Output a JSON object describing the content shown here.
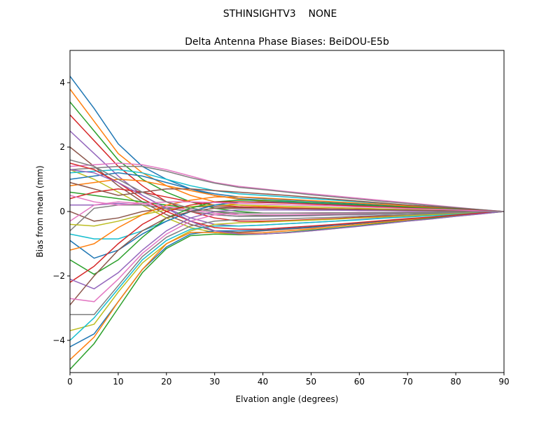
{
  "suptitle": "STHINSIGHTV3    NONE",
  "chart_data": {
    "type": "line",
    "title": "Delta Antenna Phase Biases: BeiDOU-E5b",
    "xlabel": "Elvation angle (degrees)",
    "ylabel": "Bias from mean (mm)",
    "xlim": [
      0,
      90
    ],
    "ylim": [
      -5,
      5
    ],
    "xticks": [
      "0",
      "10",
      "20",
      "30",
      "40",
      "50",
      "60",
      "70",
      "80",
      "90"
    ],
    "yticks": [
      "−4",
      "−2",
      "0",
      "2",
      "4"
    ],
    "grid": false,
    "colors": [
      "#1f77b4",
      "#ff7f0e",
      "#2ca02c",
      "#d62728",
      "#9467bd",
      "#8c564b",
      "#e377c2",
      "#7f7f7f",
      "#bcbd22",
      "#17becf"
    ],
    "x": [
      0,
      5,
      10,
      15,
      20,
      25,
      30,
      35,
      40,
      45,
      50,
      55,
      60,
      65,
      70,
      75,
      80,
      85,
      90
    ],
    "series": [
      {
        "values": [
          4.2,
          3.2,
          2.1,
          1.4,
          1.0,
          0.7,
          0.5,
          0.4,
          0.35,
          0.3,
          0.25,
          0.2,
          0.16,
          0.13,
          0.1,
          0.07,
          0.04,
          0.02,
          0
        ]
      },
      {
        "values": [
          3.8,
          2.8,
          1.8,
          1.2,
          0.8,
          0.5,
          0.3,
          0.2,
          0.15,
          0.12,
          0.1,
          0.08,
          0.06,
          0.05,
          0.04,
          0.03,
          0.02,
          0.01,
          0
        ]
      },
      {
        "values": [
          3.4,
          2.5,
          1.6,
          1.0,
          0.6,
          0.3,
          0.1,
          0,
          -0.05,
          -0.05,
          -0.05,
          -0.04,
          -0.04,
          -0.03,
          -0.03,
          -0.02,
          -0.01,
          -0.01,
          0
        ]
      },
      {
        "values": [
          3.0,
          2.2,
          1.4,
          0.8,
          0.3,
          0,
          -0.2,
          -0.3,
          -0.3,
          -0.28,
          -0.25,
          -0.22,
          -0.18,
          -0.15,
          -0.12,
          -0.09,
          -0.06,
          -0.03,
          0
        ]
      },
      {
        "values": [
          2.5,
          1.8,
          1.1,
          0.5,
          0.1,
          -0.2,
          -0.4,
          -0.45,
          -0.42,
          -0.38,
          -0.34,
          -0.3,
          -0.25,
          -0.2,
          -0.16,
          -0.12,
          -0.08,
          -0.04,
          0
        ]
      },
      {
        "values": [
          2.0,
          1.4,
          0.8,
          0.3,
          -0.1,
          -0.4,
          -0.6,
          -0.65,
          -0.6,
          -0.55,
          -0.5,
          -0.43,
          -0.37,
          -0.3,
          -0.24,
          -0.18,
          -0.12,
          -0.06,
          0
        ]
      },
      {
        "values": [
          1.4,
          1.45,
          1.5,
          1.45,
          1.3,
          1.1,
          0.9,
          0.78,
          0.7,
          0.62,
          0.55,
          0.48,
          0.41,
          0.34,
          0.27,
          0.2,
          0.13,
          0.06,
          0
        ]
      },
      {
        "values": [
          1.3,
          1.35,
          1.4,
          1.4,
          1.25,
          1.05,
          0.88,
          0.75,
          0.68,
          0.6,
          0.52,
          0.45,
          0.38,
          0.31,
          0.25,
          0.18,
          0.12,
          0.06,
          0
        ]
      },
      {
        "values": [
          1.3,
          1.0,
          0.6,
          0.2,
          -0.2,
          -0.5,
          -0.65,
          -0.72,
          -0.7,
          -0.66,
          -0.6,
          -0.53,
          -0.45,
          -0.38,
          -0.3,
          -0.23,
          -0.15,
          -0.08,
          0
        ]
      },
      {
        "values": [
          1.2,
          1.25,
          1.3,
          1.2,
          1.0,
          0.8,
          0.65,
          0.55,
          0.5,
          0.45,
          0.4,
          0.35,
          0.3,
          0.25,
          0.2,
          0.15,
          0.1,
          0.05,
          0
        ]
      },
      {
        "values": [
          1.0,
          1.1,
          1.2,
          1.1,
          0.9,
          0.7,
          0.55,
          0.45,
          0.4,
          0.36,
          0.32,
          0.28,
          0.24,
          0.2,
          0.16,
          0.12,
          0.08,
          0.04,
          0
        ]
      },
      {
        "values": [
          0.8,
          0.9,
          1.0,
          0.95,
          0.8,
          0.65,
          0.5,
          0.38,
          0.32,
          0.28,
          0.25,
          0.22,
          0.19,
          0.16,
          0.13,
          0.1,
          0.07,
          0.03,
          0
        ]
      },
      {
        "values": [
          0.6,
          0.5,
          0.4,
          0.3,
          0.2,
          0.1,
          0,
          -0.1,
          -0.12,
          -0.12,
          -0.11,
          -0.1,
          -0.09,
          -0.08,
          -0.06,
          -0.05,
          -0.03,
          -0.02,
          0
        ]
      },
      {
        "values": [
          0.4,
          0.6,
          0.7,
          0.6,
          0.45,
          0.3,
          0.2,
          0.15,
          0.12,
          0.1,
          0.09,
          0.08,
          0.07,
          0.06,
          0.05,
          0.04,
          0.03,
          0.01,
          0
        ]
      },
      {
        "values": [
          0.2,
          0.2,
          0.25,
          0.2,
          0.1,
          0,
          -0.1,
          -0.15,
          -0.15,
          -0.14,
          -0.13,
          -0.11,
          -0.1,
          -0.08,
          -0.06,
          -0.05,
          -0.03,
          -0.02,
          0
        ]
      },
      {
        "values": [
          0,
          -0.3,
          -0.2,
          0,
          0.1,
          0.15,
          0.15,
          0.12,
          0.1,
          0.09,
          0.08,
          0.07,
          0.06,
          0.05,
          0.04,
          0.03,
          0.02,
          0.01,
          0
        ]
      },
      {
        "values": [
          -0.3,
          0.2,
          0.3,
          0.25,
          0.15,
          0.05,
          -0.05,
          -0.1,
          -0.1,
          -0.1,
          -0.09,
          -0.08,
          -0.07,
          -0.06,
          -0.05,
          -0.04,
          -0.03,
          -0.01,
          0
        ]
      },
      {
        "values": [
          -0.6,
          0.1,
          0.2,
          0.2,
          0.1,
          0,
          -0.1,
          -0.15,
          -0.14,
          -0.13,
          -0.12,
          -0.1,
          -0.09,
          -0.07,
          -0.06,
          -0.04,
          -0.03,
          -0.01,
          0
        ]
      },
      {
        "values": [
          -0.4,
          -0.45,
          -0.3,
          -0.1,
          0.05,
          0.15,
          0.2,
          0.2,
          0.18,
          0.16,
          0.14,
          0.12,
          0.1,
          0.08,
          0.06,
          0.05,
          0.03,
          0.02,
          0
        ]
      },
      {
        "values": [
          -0.7,
          -0.85,
          -0.85,
          -0.6,
          -0.3,
          0,
          0.2,
          0.3,
          0.3,
          0.28,
          0.25,
          0.22,
          0.19,
          0.16,
          0.13,
          0.1,
          0.07,
          0.03,
          0
        ]
      },
      {
        "values": [
          -0.9,
          -1.45,
          -1.2,
          -0.7,
          -0.3,
          0,
          0.2,
          0.3,
          0.3,
          0.27,
          0.24,
          0.21,
          0.18,
          0.15,
          0.12,
          0.09,
          0.06,
          0.03,
          0
        ]
      },
      {
        "values": [
          -1.2,
          -1.0,
          -0.5,
          -0.1,
          0.2,
          0.35,
          0.45,
          0.45,
          0.42,
          0.38,
          0.34,
          0.3,
          0.26,
          0.22,
          0.17,
          0.13,
          0.09,
          0.04,
          0
        ]
      },
      {
        "values": [
          -1.5,
          -1.95,
          -1.5,
          -0.8,
          -0.2,
          0.1,
          0.3,
          0.35,
          0.35,
          0.32,
          0.28,
          0.25,
          0.21,
          0.17,
          0.14,
          0.1,
          0.07,
          0.03,
          0
        ]
      },
      {
        "values": [
          -2.2,
          -1.7,
          -1.0,
          -0.4,
          0,
          0.2,
          0.3,
          0.3,
          0.28,
          0.26,
          0.23,
          0.2,
          0.17,
          0.14,
          0.11,
          0.08,
          0.05,
          0.03,
          0
        ]
      },
      {
        "values": [
          -2.1,
          -2.4,
          -1.9,
          -1.2,
          -0.6,
          -0.2,
          0,
          0.05,
          0.05,
          0.05,
          0.04,
          0.04,
          0.03,
          0.03,
          0.02,
          0.02,
          0.01,
          0.01,
          0
        ]
      },
      {
        "values": [
          -2.9,
          -2.0,
          -1.2,
          -0.6,
          -0.2,
          0,
          0.1,
          0.1,
          0.1,
          0.09,
          0.08,
          0.07,
          0.06,
          0.05,
          0.04,
          0.03,
          0.02,
          0.01,
          0
        ]
      },
      {
        "values": [
          -2.7,
          -2.8,
          -2.1,
          -1.3,
          -0.7,
          -0.3,
          -0.1,
          -0.05,
          -0.05,
          -0.05,
          -0.04,
          -0.04,
          -0.03,
          -0.03,
          -0.02,
          -0.02,
          -0.01,
          -0.01,
          0
        ]
      },
      {
        "values": [
          -3.2,
          -3.2,
          -2.3,
          -1.4,
          -0.8,
          -0.45,
          -0.3,
          -0.25,
          -0.24,
          -0.22,
          -0.2,
          -0.18,
          -0.15,
          -0.12,
          -0.1,
          -0.07,
          -0.05,
          -0.02,
          0
        ]
      },
      {
        "values": [
          -3.7,
          -3.5,
          -2.5,
          -1.6,
          -1.0,
          -0.6,
          -0.4,
          -0.35,
          -0.33,
          -0.3,
          -0.27,
          -0.24,
          -0.2,
          -0.17,
          -0.13,
          -0.1,
          -0.07,
          -0.03,
          0
        ]
      },
      {
        "values": [
          -4.0,
          -3.3,
          -2.4,
          -1.5,
          -0.9,
          -0.55,
          -0.45,
          -0.45,
          -0.42,
          -0.38,
          -0.34,
          -0.3,
          -0.26,
          -0.21,
          -0.17,
          -0.13,
          -0.09,
          -0.04,
          0
        ]
      },
      {
        "values": [
          -4.2,
          -3.8,
          -2.8,
          -1.8,
          -1.1,
          -0.7,
          -0.6,
          -0.6,
          -0.58,
          -0.53,
          -0.48,
          -0.42,
          -0.36,
          -0.3,
          -0.24,
          -0.18,
          -0.12,
          -0.06,
          0
        ]
      },
      {
        "values": [
          -4.6,
          -3.9,
          -2.8,
          -1.8,
          -1.0,
          -0.65,
          -0.65,
          -0.68,
          -0.66,
          -0.6,
          -0.54,
          -0.47,
          -0.4,
          -0.33,
          -0.26,
          -0.2,
          -0.13,
          -0.06,
          0
        ]
      },
      {
        "values": [
          -4.9,
          -4.1,
          -3.0,
          -1.9,
          -1.15,
          -0.75,
          -0.7,
          -0.72,
          -0.7,
          -0.65,
          -0.58,
          -0.51,
          -0.44,
          -0.36,
          -0.29,
          -0.21,
          -0.14,
          -0.07,
          0
        ]
      },
      {
        "values": [
          1.5,
          1.3,
          0.9,
          0.4,
          0,
          -0.3,
          -0.5,
          -0.55,
          -0.55,
          -0.5,
          -0.45,
          -0.4,
          -0.34,
          -0.28,
          -0.22,
          -0.17,
          -0.11,
          -0.05,
          0
        ]
      },
      {
        "values": [
          1.3,
          1.2,
          0.9,
          0.5,
          0.1,
          -0.3,
          -0.6,
          -0.7,
          -0.7,
          -0.66,
          -0.6,
          -0.53,
          -0.46,
          -0.38,
          -0.3,
          -0.23,
          -0.15,
          -0.08,
          0
        ]
      },
      {
        "values": [
          0.9,
          0.7,
          0.5,
          0.6,
          0.7,
          0.7,
          0.65,
          0.6,
          0.55,
          0.5,
          0.44,
          0.38,
          0.32,
          0.26,
          0.2,
          0.15,
          0.1,
          0.05,
          0
        ]
      },
      {
        "values": [
          0.5,
          0.3,
          0.2,
          0.25,
          0.3,
          0.3,
          0.28,
          0.25,
          0.23,
          0.21,
          0.19,
          0.17,
          0.14,
          0.12,
          0.09,
          0.07,
          0.05,
          0.02,
          0
        ]
      },
      {
        "values": [
          1.6,
          1.4,
          1.0,
          0.6,
          0.3,
          0.1,
          0,
          -0.05,
          -0.05,
          -0.05,
          -0.05,
          -0.04,
          -0.04,
          -0.03,
          -0.03,
          -0.02,
          -0.01,
          -0.01,
          0
        ]
      }
    ]
  }
}
